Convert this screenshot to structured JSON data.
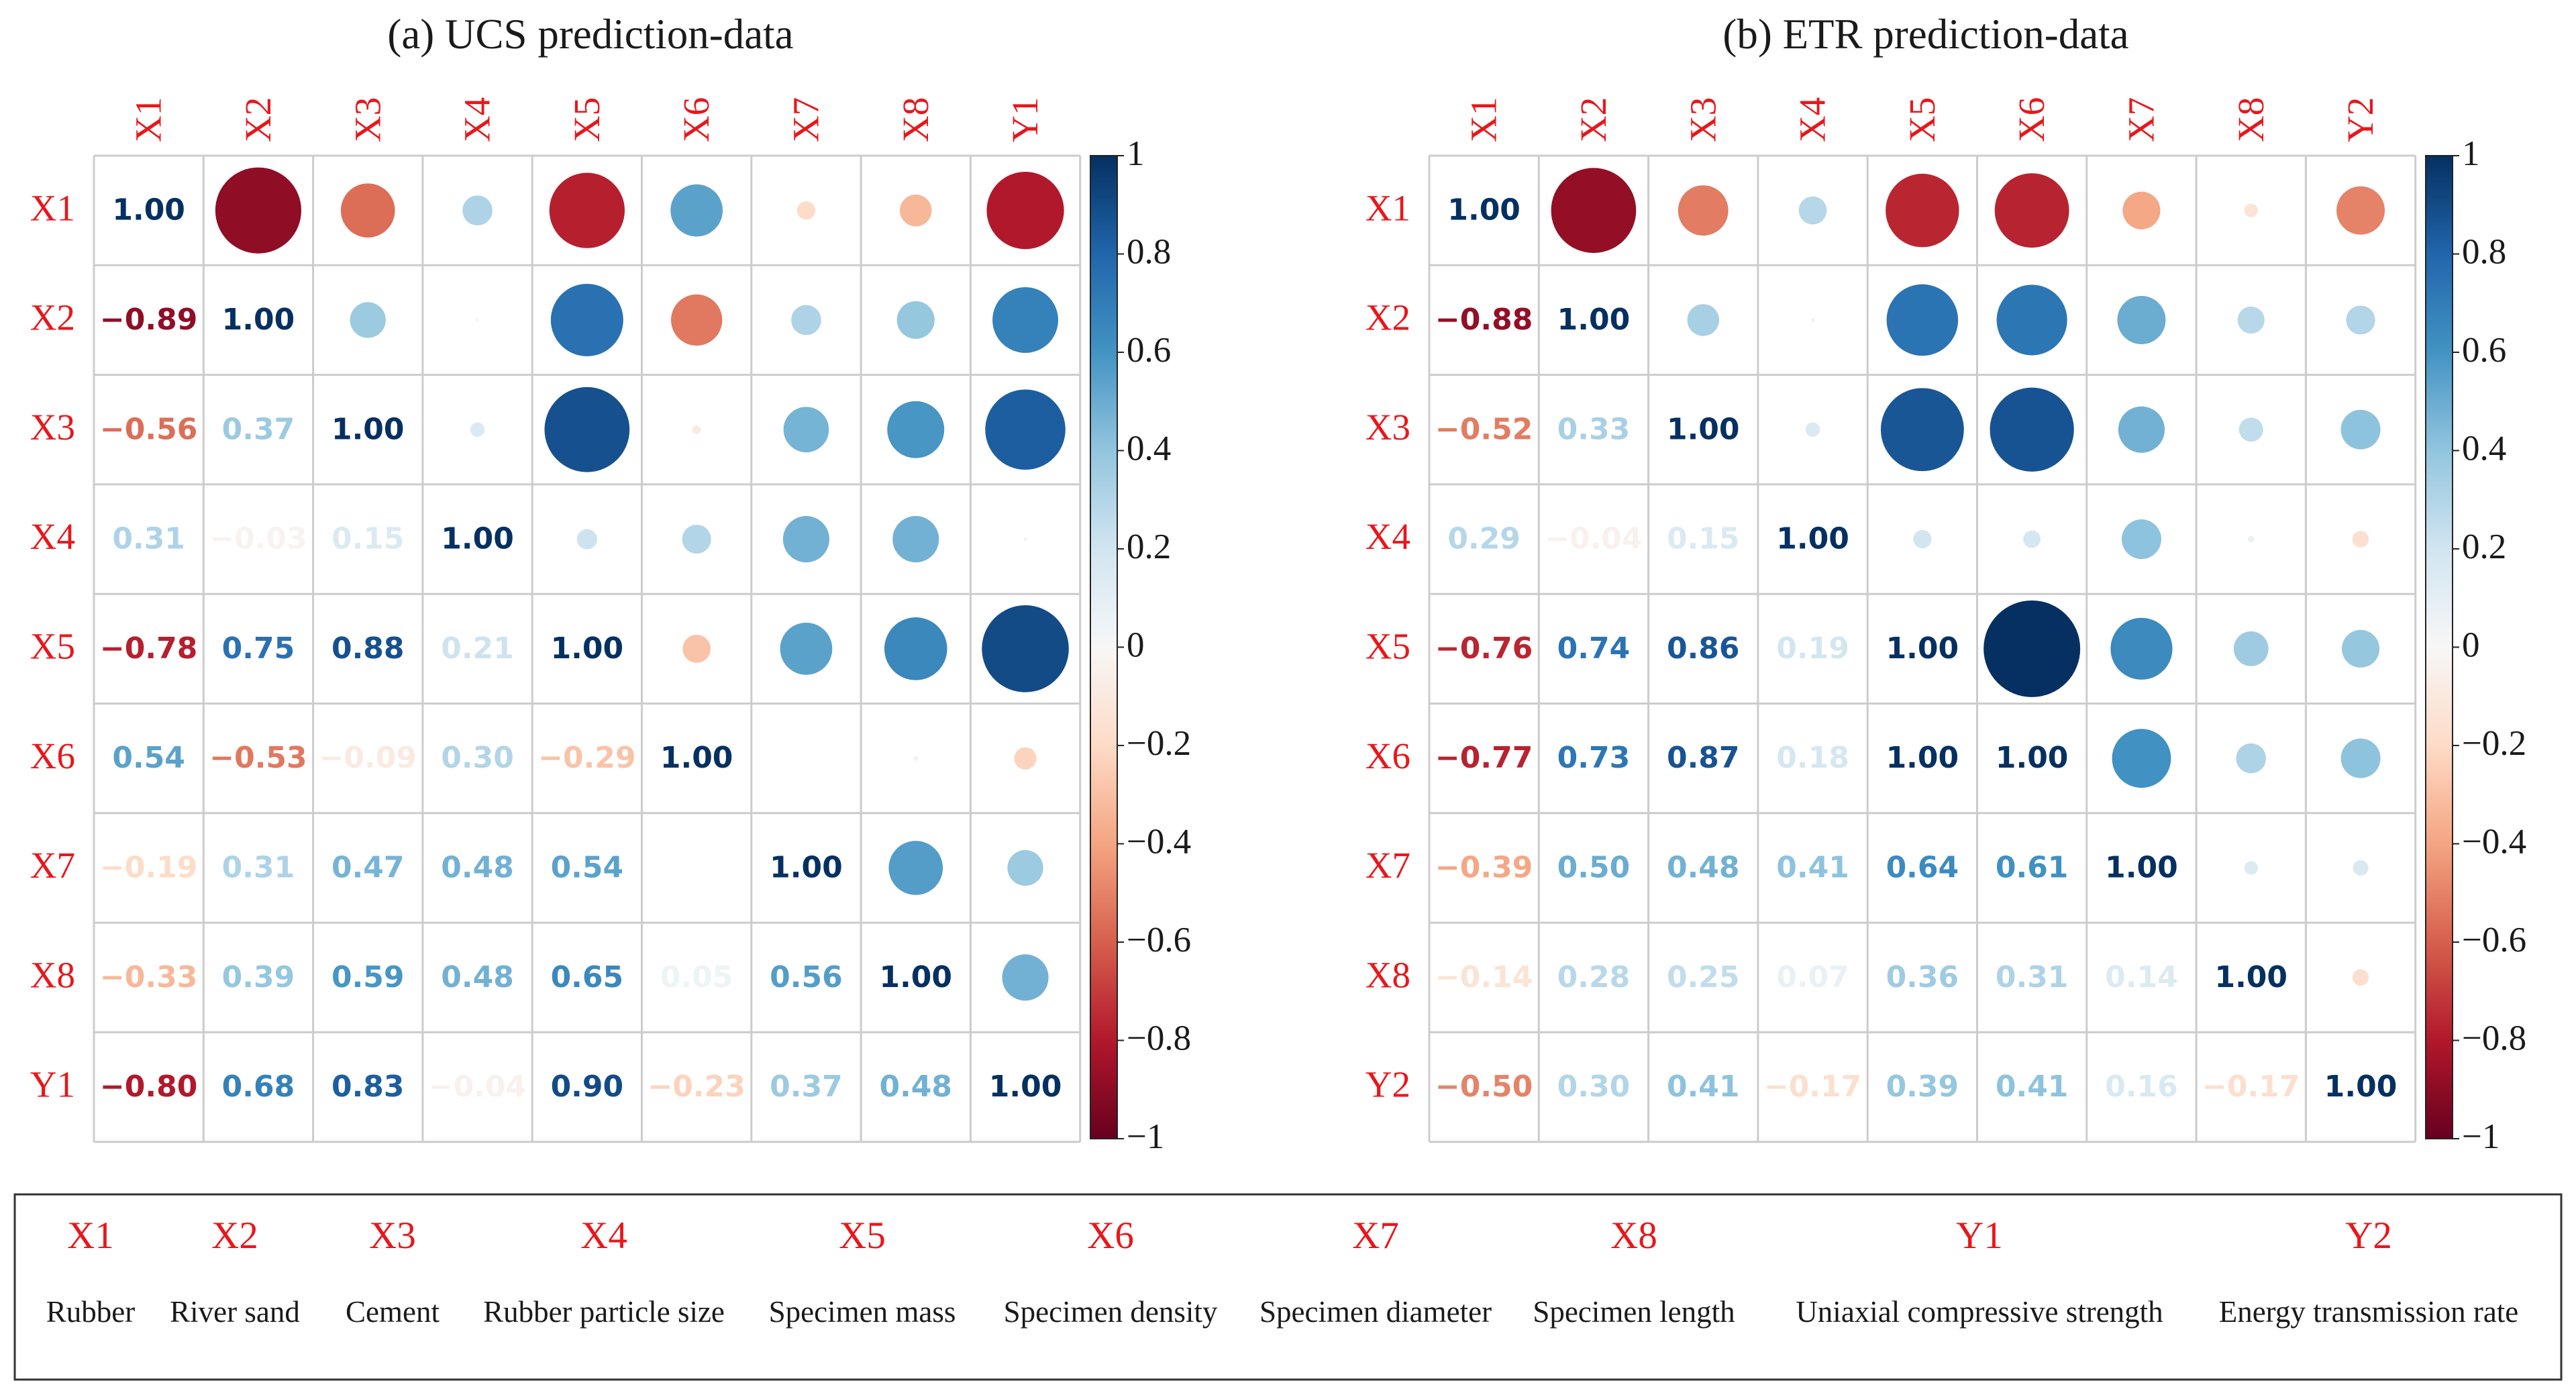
{
  "chart_data": [
    {
      "type": "heatmap",
      "title": "(a) UCS prediction-data",
      "labels": [
        "X1",
        "X2",
        "X3",
        "X4",
        "X5",
        "X6",
        "X7",
        "X8",
        "Y1"
      ],
      "matrix": [
        [
          1.0,
          -0.89,
          -0.56,
          0.31,
          -0.78,
          0.54,
          -0.19,
          -0.33,
          -0.8
        ],
        [
          -0.89,
          1.0,
          0.37,
          -0.03,
          0.75,
          -0.53,
          0.31,
          0.39,
          0.68
        ],
        [
          -0.56,
          0.37,
          1.0,
          0.15,
          0.88,
          -0.09,
          0.47,
          0.59,
          0.83
        ],
        [
          0.31,
          -0.03,
          0.15,
          1.0,
          0.21,
          0.3,
          0.48,
          0.48,
          -0.04
        ],
        [
          -0.78,
          0.75,
          0.88,
          0.21,
          1.0,
          -0.29,
          0.54,
          0.65,
          0.9
        ],
        [
          0.54,
          -0.53,
          -0.09,
          0.3,
          -0.29,
          1.0,
          0.0,
          0.05,
          -0.23
        ],
        [
          -0.19,
          0.31,
          0.47,
          0.48,
          0.54,
          0.0,
          1.0,
          0.56,
          0.37
        ],
        [
          -0.33,
          0.39,
          0.59,
          0.48,
          0.65,
          0.05,
          0.56,
          1.0,
          0.48
        ],
        [
          -0.8,
          0.68,
          0.83,
          -0.04,
          0.9,
          -0.23,
          0.37,
          0.48,
          1.0
        ]
      ],
      "colorbar_ticks": [
        "1",
        "0.8",
        "0.6",
        "0.4",
        "0.2",
        "0",
        "−0.2",
        "−0.4",
        "−0.6",
        "−0.8",
        "−1"
      ],
      "range": [
        -1,
        1
      ]
    },
    {
      "type": "heatmap",
      "title": "(b) ETR prediction-data",
      "labels": [
        "X1",
        "X2",
        "X3",
        "X4",
        "X5",
        "X6",
        "X7",
        "X8",
        "Y2"
      ],
      "matrix": [
        [
          1.0,
          -0.88,
          -0.52,
          0.29,
          -0.76,
          -0.77,
          -0.39,
          -0.14,
          -0.5
        ],
        [
          -0.88,
          1.0,
          0.33,
          -0.04,
          0.74,
          0.73,
          0.5,
          0.28,
          0.3
        ],
        [
          -0.52,
          0.33,
          1.0,
          0.15,
          0.86,
          0.87,
          0.48,
          0.25,
          0.41
        ],
        [
          0.29,
          -0.04,
          0.15,
          1.0,
          0.19,
          0.18,
          0.41,
          0.07,
          -0.17
        ],
        [
          -0.76,
          0.74,
          0.86,
          0.19,
          1.0,
          1.0,
          0.64,
          0.36,
          0.39
        ],
        [
          -0.77,
          0.73,
          0.87,
          0.18,
          1.0,
          1.0,
          0.61,
          0.31,
          0.41
        ],
        [
          -0.39,
          0.5,
          0.48,
          0.41,
          0.64,
          0.61,
          1.0,
          0.14,
          0.16
        ],
        [
          -0.14,
          0.28,
          0.25,
          0.07,
          0.36,
          0.31,
          0.14,
          1.0,
          -0.17
        ],
        [
          -0.5,
          0.3,
          0.41,
          -0.17,
          0.39,
          0.41,
          0.16,
          -0.17,
          1.0
        ]
      ],
      "colorbar_ticks": [
        "1",
        "0.8",
        "0.6",
        "0.4",
        "0.2",
        "0",
        "−0.2",
        "−0.4",
        "−0.6",
        "−0.8",
        "−1"
      ],
      "range": [
        -1,
        1
      ]
    }
  ],
  "legend": [
    {
      "code": "X1",
      "name": "Rubber"
    },
    {
      "code": "X2",
      "name": "River sand"
    },
    {
      "code": "X3",
      "name": "Cement"
    },
    {
      "code": "X4",
      "name": "Rubber particle size"
    },
    {
      "code": "X5",
      "name": "Specimen mass"
    },
    {
      "code": "X6",
      "name": "Specimen density"
    },
    {
      "code": "X7",
      "name": "Specimen diameter"
    },
    {
      "code": "X8",
      "name": "Specimen length"
    },
    {
      "code": "Y1",
      "name": "Uniaxial compressive strength"
    },
    {
      "code": "Y2",
      "name": "Energy transmission rate"
    }
  ]
}
